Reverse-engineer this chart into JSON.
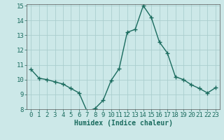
{
  "x": [
    0,
    1,
    2,
    3,
    4,
    5,
    6,
    7,
    8,
    9,
    10,
    11,
    12,
    13,
    14,
    15,
    16,
    17,
    18,
    19,
    20,
    21,
    22,
    23
  ],
  "y": [
    10.7,
    10.1,
    10.0,
    9.85,
    9.7,
    9.4,
    9.1,
    7.85,
    8.05,
    8.6,
    9.95,
    10.75,
    13.2,
    13.4,
    15.0,
    14.2,
    12.55,
    11.8,
    10.2,
    10.0,
    9.65,
    9.4,
    9.1,
    9.45
  ],
  "line_color": "#1a6b5e",
  "marker": "+",
  "marker_size": 4,
  "bg_color": "#cce8e8",
  "grid_color": "#aacece",
  "xlabel": "Humidex (Indice chaleur)",
  "ylim": [
    8,
    15
  ],
  "xlim": [
    -0.5,
    23.5
  ],
  "yticks": [
    8,
    9,
    10,
    11,
    12,
    13,
    14,
    15
  ],
  "xticks": [
    0,
    1,
    2,
    3,
    4,
    5,
    6,
    7,
    8,
    9,
    10,
    11,
    12,
    13,
    14,
    15,
    16,
    17,
    18,
    19,
    20,
    21,
    22,
    23
  ],
  "xlabel_fontsize": 7,
  "tick_fontsize": 6.5,
  "line_width": 1.0
}
